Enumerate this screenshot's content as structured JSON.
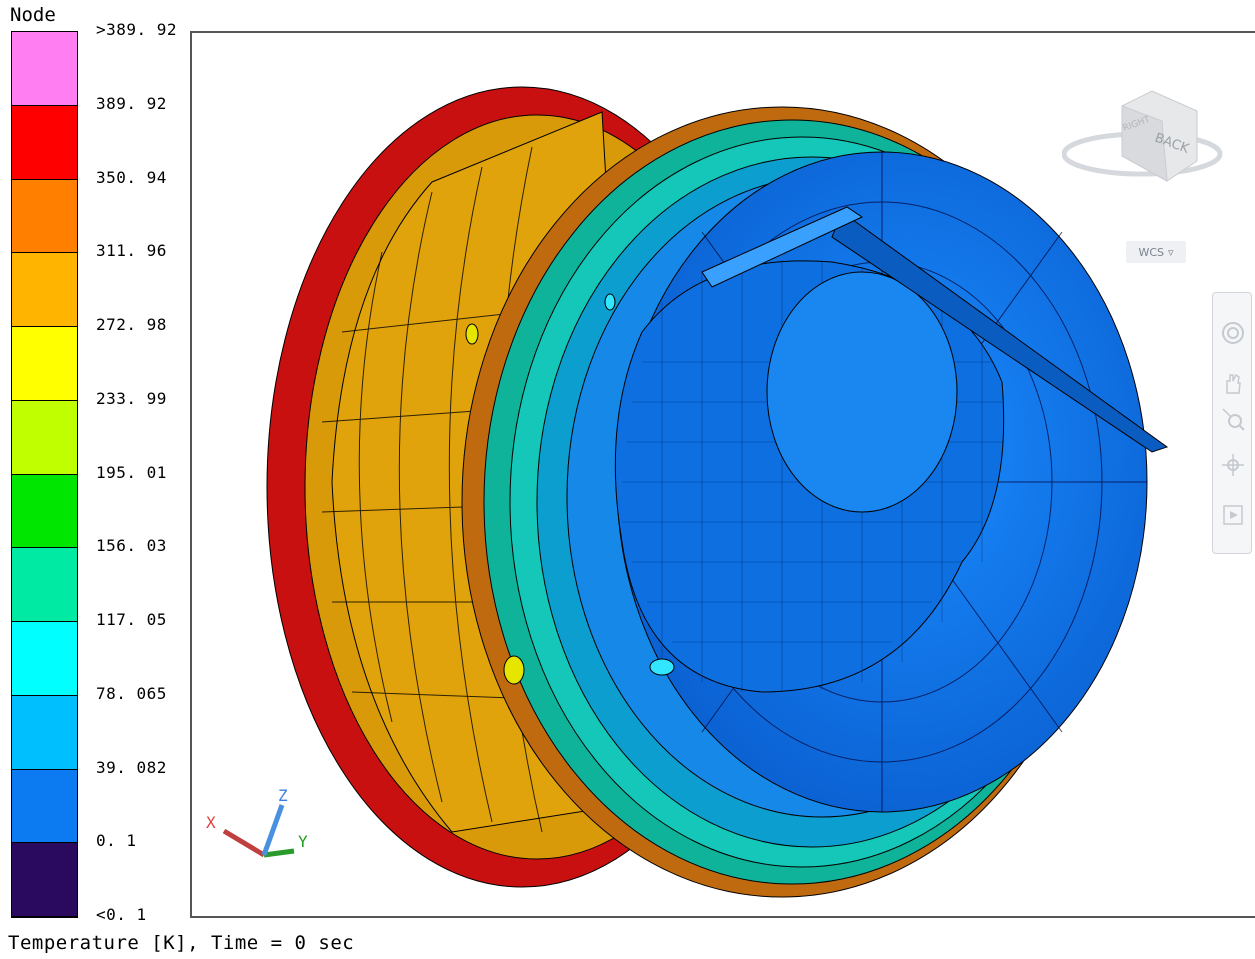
{
  "legend": {
    "title": "Node",
    "labels": [
      ">389. 92",
      "389. 92",
      "350. 94",
      "311. 96",
      "272. 98",
      "233. 99",
      "195. 01",
      "156. 03",
      "117. 05",
      "78. 065",
      "39. 082",
      "0. 1",
      "<0. 1"
    ],
    "colors": [
      "#ff7ef2",
      "#ff0000",
      "#ff7f00",
      "#ffb400",
      "#ffff00",
      "#bfff00",
      "#00e600",
      "#00eaa4",
      "#00ffff",
      "#00bfff",
      "#0c7af0",
      "#2a0a5e"
    ]
  },
  "footer": {
    "text": "Temperature [K], Time = 0 sec"
  },
  "viewcube": {
    "face_back": "BACK",
    "face_right": "RIGHT"
  },
  "wcs": {
    "label": "WCS"
  },
  "triad": {
    "x": "X",
    "y": "Y",
    "z": "Z"
  },
  "navbar": {
    "icons": [
      "steering-wheel-icon",
      "pan-icon",
      "zoom-icon",
      "orbit-icon",
      "showmotion-icon"
    ]
  }
}
